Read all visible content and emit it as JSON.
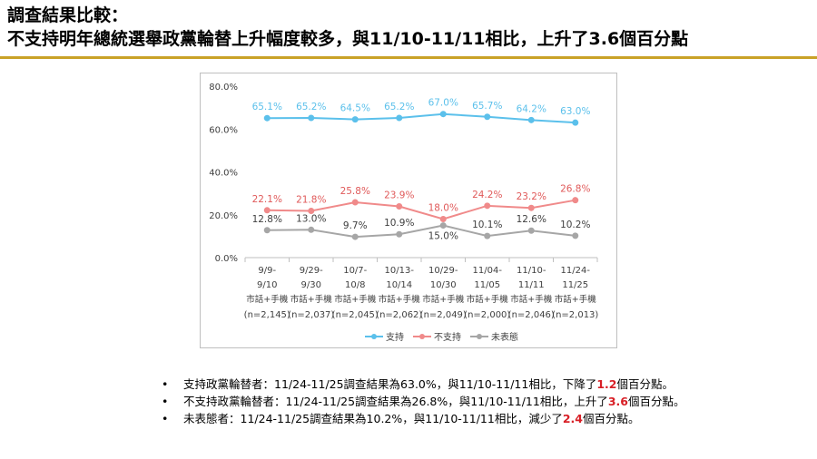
{
  "header": {
    "title_line1": "調查結果比較：",
    "title_line2": "不支持明年總統選舉政黨輪替上升幅度較多，與11/10-11/11相比，上升了3.6個百分點"
  },
  "chart_data": {
    "type": "line",
    "categories": [
      [
        "9/9-",
        "9/10",
        "市話+手機",
        "(n=2,145)"
      ],
      [
        "9/29-",
        "9/30",
        "市話+手機",
        "(n=2,037)"
      ],
      [
        "10/7-",
        "10/8",
        "市話+手機",
        "(n=2,045)"
      ],
      [
        "10/13-",
        "10/14",
        "市話+手機",
        "(n=2,062)"
      ],
      [
        "10/29-",
        "10/30",
        "市話+手機",
        "(n=2,049)"
      ],
      [
        "11/04-",
        "11/05",
        "市話+手機",
        "(n=2,000)"
      ],
      [
        "11/10-",
        "11/11",
        "市話+手機",
        "(n=2,046)"
      ],
      [
        "11/24-",
        "11/25",
        "市話+手機",
        "(n=2,013)"
      ]
    ],
    "series": [
      {
        "name": "支持",
        "color": "#5bc0eb",
        "label_position": "above",
        "values": [
          65.1,
          65.2,
          64.5,
          65.2,
          67.0,
          65.7,
          64.2,
          63.0
        ],
        "labels": [
          "65.1%",
          "65.2%",
          "64.5%",
          "65.2%",
          "67.0%",
          "65.7%",
          "64.2%",
          "63.0%"
        ]
      },
      {
        "name": "不支持",
        "color": "#f08a8a",
        "label_color": "#e05a5a",
        "label_position": "above",
        "values": [
          22.1,
          21.8,
          25.8,
          23.9,
          18.0,
          24.2,
          23.2,
          26.8
        ],
        "labels": [
          "22.1%",
          "21.8%",
          "25.8%",
          "23.9%",
          "18.0%",
          "24.2%",
          "23.2%",
          "26.8%"
        ]
      },
      {
        "name": "未表態",
        "color": "#a6a6a6",
        "label_color": "#404040",
        "label_position": "mixed",
        "values": [
          12.8,
          13.0,
          9.7,
          10.9,
          15.0,
          10.1,
          12.6,
          10.2
        ],
        "labels": [
          "12.8%",
          "13.0%",
          "9.7%",
          "10.9%",
          "15.0%",
          "10.1%",
          "12.6%",
          "10.2%"
        ],
        "label_below": [
          false,
          false,
          false,
          false,
          true,
          false,
          false,
          false
        ]
      }
    ],
    "ylim": [
      0,
      80
    ],
    "yticks": [
      "0.0%",
      "20.0%",
      "40.0%",
      "60.0%",
      "80.0%"
    ],
    "ytick_values": [
      0,
      20,
      40,
      60,
      80
    ],
    "grid": false,
    "legend_position": "bottom-center"
  },
  "bullets": [
    {
      "marker": "•",
      "text": "支持政黨輪替者：11/24-11/25調查結果為63.0%，與11/10-11/11相比，下降了",
      "highlight": "1.2",
      "suffix": "個百分點。"
    },
    {
      "marker": "•",
      "text": "不支持政黨輪替者：11/24-11/25調查結果為26.8%，與11/10-11/11相比，上升了",
      "highlight": "3.6",
      "suffix": "個百分點。"
    },
    {
      "marker": "•",
      "text": "未表態者：11/24-11/25調查結果為10.2%，與11/10-11/11相比，減少了",
      "highlight": "2.4",
      "suffix": "個百分點。"
    }
  ]
}
